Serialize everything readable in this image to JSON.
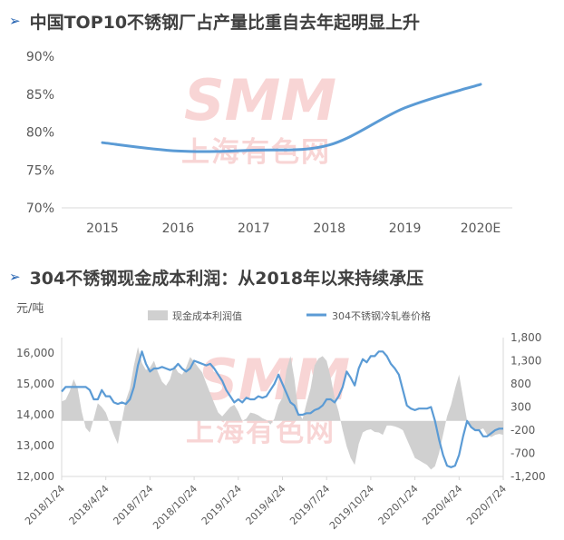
{
  "headings": {
    "top": {
      "arrow": "➢",
      "title": "中国TOP10不锈钢厂占产量比重自去年起明显上升"
    },
    "bottom": {
      "arrow": "➢",
      "title": "304不锈钢现金成本利润：从2018年以来持续承压"
    }
  },
  "watermark": {
    "latin": "SMM",
    "cjk": "上海有色网"
  },
  "colors": {
    "line": "#5b9bd5",
    "area": "#d0d0d0",
    "axis": "#d9d9d9",
    "heading_arrow": "#1f5fb0",
    "watermark": "#f4b4b4"
  },
  "chart_data": [
    {
      "type": "line",
      "title": "中国TOP10不锈钢厂占产量比重自去年起明显上升",
      "x": [
        "2015",
        "2016",
        "2017",
        "2018",
        "2019",
        "2020E"
      ],
      "series": [
        {
          "values": [
            78.6,
            77.5,
            77.6,
            78.3,
            83.2,
            86.3
          ]
        }
      ],
      "yticks": [
        "70%",
        "75%",
        "80%",
        "85%",
        "90%"
      ],
      "ylim": [
        70,
        90
      ],
      "grid": false
    },
    {
      "type": "area",
      "title": "304不锈钢现金成本利润：从2018年以来持续承压",
      "y_unit_label": "元/吨",
      "xticks": [
        "2018/1/24",
        "2018/4/24",
        "2018/7/24",
        "2018/10/24",
        "2019/1/24",
        "2019/4/24",
        "2019/7/24",
        "2019/10/24",
        "2020/1/24",
        "2020/4/24",
        "2020/7/24"
      ],
      "left_ticks": [
        "12,000",
        "13,000",
        "14,000",
        "15,000",
        "16,000"
      ],
      "right_ticks": [
        "-1,200",
        "-700",
        "-200",
        "300",
        "800",
        "1,300",
        "1,800"
      ],
      "ylim_left": [
        12000,
        16500
      ],
      "ylim_right": [
        -1200,
        1800
      ],
      "legend_position": "top",
      "series": [
        {
          "name": "现金成本利润值",
          "axis": "right",
          "type": "area",
          "t": [
            0,
            1,
            2,
            3,
            4,
            5,
            6,
            7,
            8,
            9,
            10,
            11,
            12,
            13,
            14,
            15,
            16,
            17,
            18,
            19,
            20,
            21,
            22,
            23,
            24,
            25,
            26,
            27,
            28,
            29,
            30,
            31,
            32,
            33,
            34,
            35,
            36,
            37,
            38,
            39,
            40,
            41,
            42,
            43,
            44,
            45,
            46,
            47,
            48,
            49,
            50,
            51,
            52,
            53,
            54,
            55,
            56,
            57,
            58,
            59,
            60,
            61,
            62,
            63,
            64,
            65,
            66,
            67,
            68,
            69,
            70,
            71,
            72,
            73,
            74,
            75,
            76,
            77,
            78,
            79,
            80,
            81,
            82,
            83,
            84,
            85,
            86,
            87,
            88,
            89,
            90,
            91,
            92,
            93,
            94,
            95,
            96,
            97,
            98,
            99,
            100,
            101,
            102,
            103,
            104,
            105,
            106,
            107,
            108,
            109,
            110
          ],
          "values": [
            420,
            460,
            640,
            900,
            700,
            200,
            -150,
            -250,
            50,
            380,
            300,
            180,
            -60,
            -300,
            -500,
            0,
            450,
            700,
            1200,
            1600,
            1250,
            1100,
            1150,
            1300,
            1050,
            850,
            760,
            900,
            1200,
            1050,
            1000,
            1150,
            1380,
            1280,
            1160,
            1050,
            820,
            600,
            380,
            180,
            100,
            200,
            300,
            350,
            200,
            0,
            50,
            180,
            160,
            120,
            60,
            20,
            -80,
            50,
            350,
            500,
            1100,
            1400,
            900,
            180,
            40,
            380,
            700,
            1200,
            1350,
            1400,
            1300,
            950,
            500,
            200,
            -200,
            -550,
            -800,
            -950,
            -500,
            -250,
            -200,
            -180,
            -240,
            -250,
            -300,
            -100,
            -100,
            -120,
            -150,
            -200,
            -400,
            -600,
            -800,
            -850,
            -900,
            -950,
            -1050,
            -980,
            -700,
            -300,
            100,
            350,
            700,
            1000,
            500,
            0,
            -150,
            -180,
            -200,
            -160,
            -300,
            -350,
            -300,
            -280,
            -300
          ]
        },
        {
          "name": "304不锈钢冷轧卷价格",
          "axis": "left",
          "type": "line",
          "t": [
            0,
            1,
            2,
            3,
            4,
            5,
            6,
            7,
            8,
            9,
            10,
            11,
            12,
            13,
            14,
            15,
            16,
            17,
            18,
            19,
            20,
            21,
            22,
            23,
            24,
            25,
            26,
            27,
            28,
            29,
            30,
            31,
            32,
            33,
            34,
            35,
            36,
            37,
            38,
            39,
            40,
            41,
            42,
            43,
            44,
            45,
            46,
            47,
            48,
            49,
            50,
            51,
            52,
            53,
            54,
            55,
            56,
            57,
            58,
            59,
            60,
            61,
            62,
            63,
            64,
            65,
            66,
            67,
            68,
            69,
            70,
            71,
            72,
            73,
            74,
            75,
            76,
            77,
            78,
            79,
            80,
            81,
            82,
            83,
            84,
            85,
            86,
            87,
            88,
            89,
            90,
            91,
            92,
            93,
            94,
            95,
            96,
            97,
            98,
            99,
            100,
            101,
            102,
            103,
            104,
            105,
            106,
            107,
            108,
            109,
            110
          ],
          "values": [
            14750,
            14900,
            14900,
            14900,
            14900,
            14900,
            14900,
            14800,
            14500,
            14500,
            14800,
            14600,
            14600,
            14400,
            14350,
            14400,
            14350,
            14500,
            14900,
            15600,
            16050,
            15650,
            15400,
            15500,
            15500,
            15550,
            15500,
            15450,
            15500,
            15650,
            15500,
            15400,
            15500,
            15750,
            15700,
            15650,
            15600,
            15650,
            15500,
            15300,
            15100,
            14800,
            14600,
            14400,
            14500,
            14400,
            14550,
            14500,
            14500,
            14600,
            14550,
            14600,
            14800,
            15000,
            15300,
            15000,
            14700,
            14400,
            14300,
            14000,
            14000,
            14050,
            14050,
            14150,
            14200,
            14300,
            14500,
            14500,
            14400,
            14600,
            14900,
            15400,
            15200,
            14950,
            15500,
            15800,
            15700,
            15900,
            15900,
            16050,
            16050,
            15900,
            15650,
            15500,
            15300,
            14800,
            14300,
            14200,
            14150,
            14200,
            14200,
            14200,
            14250,
            13800,
            13200,
            12700,
            12350,
            12300,
            12350,
            12700,
            13300,
            13800,
            13600,
            13500,
            13500,
            13300,
            13300,
            13400,
            13500,
            13550,
            13550
          ]
        }
      ]
    }
  ]
}
